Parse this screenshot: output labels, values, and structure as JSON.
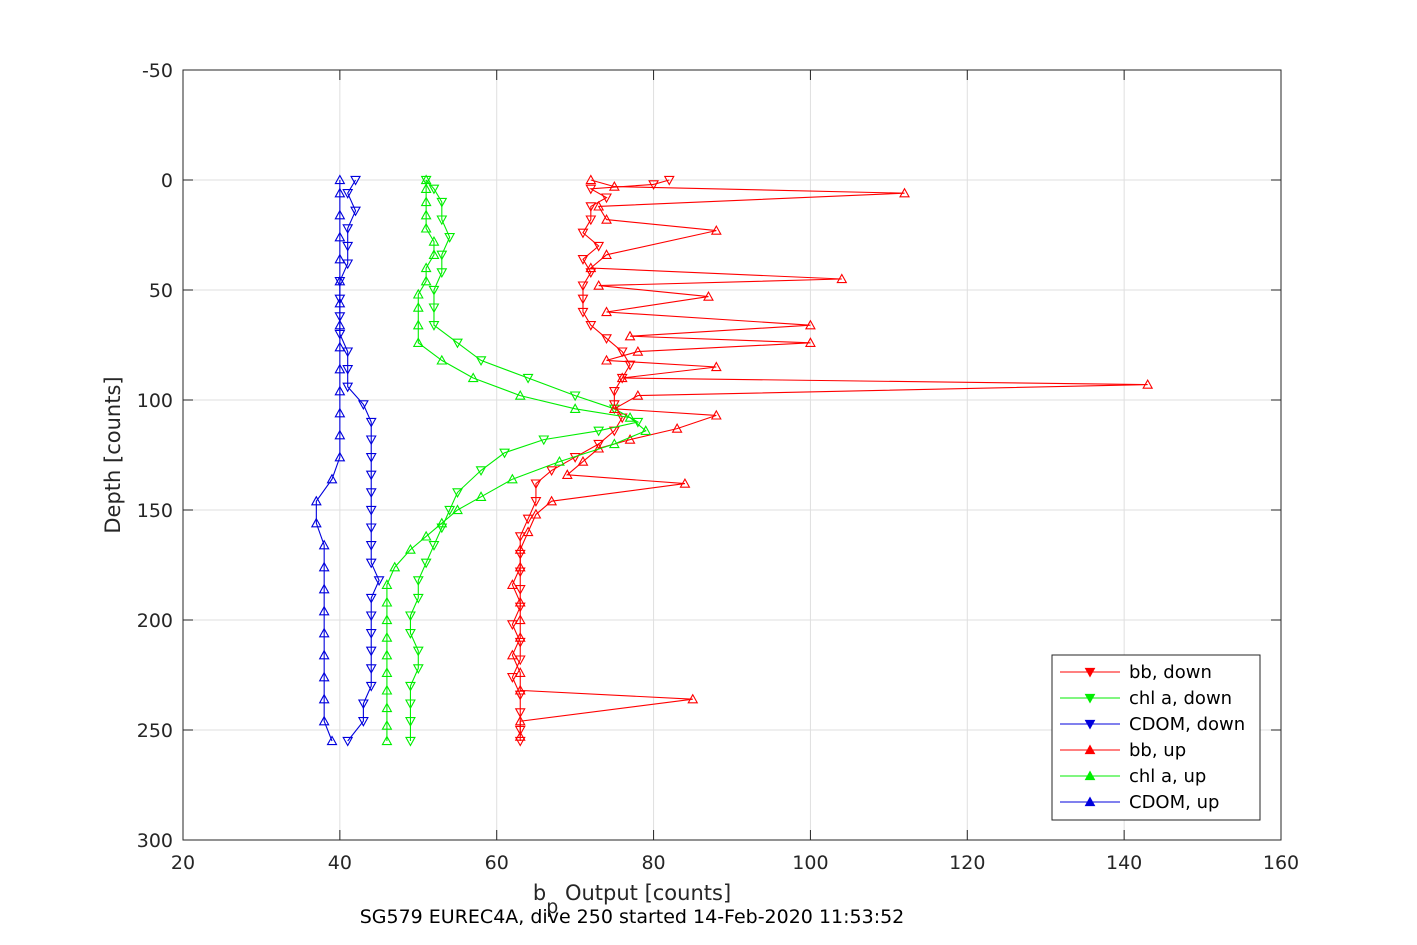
{
  "chart_data": {
    "type": "line",
    "caption": "SG579 EUREC4A, dive 250 started 14-Feb-2020 11:53:52",
    "xlabel_main": "b",
    "xlabel_sub": "p",
    "xlabel_rest": " Output [counts]",
    "ylabel": "Depth [counts]",
    "xlim": [
      20,
      160
    ],
    "ylim": [
      -50,
      300
    ],
    "y_reversed": true,
    "grid": true,
    "legend_position": "bottom-right",
    "xticks": [
      "20",
      "40",
      "60",
      "80",
      "100",
      "120",
      "140",
      "160"
    ],
    "yticks": [
      "-50",
      "0",
      "50",
      "100",
      "150",
      "200",
      "250",
      "300"
    ],
    "series": [
      {
        "name": "bb, down",
        "color": "#ff0000",
        "marker": "triangle-down",
        "points": [
          [
            82,
            0
          ],
          [
            80,
            2
          ],
          [
            72,
            4
          ],
          [
            74,
            8
          ],
          [
            72,
            12
          ],
          [
            72,
            18
          ],
          [
            71,
            24
          ],
          [
            73,
            30
          ],
          [
            71,
            36
          ],
          [
            72,
            42
          ],
          [
            71,
            48
          ],
          [
            71,
            54
          ],
          [
            71,
            60
          ],
          [
            72,
            66
          ],
          [
            74,
            72
          ],
          [
            76,
            78
          ],
          [
            77,
            84
          ],
          [
            76,
            90
          ],
          [
            75,
            96
          ],
          [
            75,
            102
          ],
          [
            76,
            108
          ],
          [
            75,
            114
          ],
          [
            73,
            120
          ],
          [
            70,
            126
          ],
          [
            67,
            132
          ],
          [
            65,
            138
          ],
          [
            65,
            146
          ],
          [
            64,
            154
          ],
          [
            63,
            162
          ],
          [
            63,
            170
          ],
          [
            63,
            178
          ],
          [
            63,
            186
          ],
          [
            63,
            194
          ],
          [
            62,
            202
          ],
          [
            63,
            210
          ],
          [
            63,
            218
          ],
          [
            62,
            226
          ],
          [
            63,
            234
          ],
          [
            63,
            242
          ],
          [
            63,
            250
          ],
          [
            63,
            255
          ]
        ]
      },
      {
        "name": "chl a, down",
        "color": "#00ee00",
        "marker": "triangle-down",
        "points": [
          [
            51,
            0
          ],
          [
            52,
            4
          ],
          [
            53,
            10
          ],
          [
            53,
            18
          ],
          [
            54,
            26
          ],
          [
            53,
            34
          ],
          [
            53,
            42
          ],
          [
            52,
            50
          ],
          [
            52,
            58
          ],
          [
            52,
            66
          ],
          [
            55,
            74
          ],
          [
            58,
            82
          ],
          [
            64,
            90
          ],
          [
            70,
            98
          ],
          [
            75,
            104
          ],
          [
            78,
            110
          ],
          [
            73,
            114
          ],
          [
            66,
            118
          ],
          [
            61,
            124
          ],
          [
            58,
            132
          ],
          [
            55,
            142
          ],
          [
            54,
            150
          ],
          [
            53,
            158
          ],
          [
            52,
            166
          ],
          [
            51,
            174
          ],
          [
            50,
            182
          ],
          [
            50,
            190
          ],
          [
            49,
            198
          ],
          [
            49,
            206
          ],
          [
            50,
            214
          ],
          [
            50,
            222
          ],
          [
            49,
            230
          ],
          [
            49,
            238
          ],
          [
            49,
            246
          ],
          [
            49,
            255
          ]
        ]
      },
      {
        "name": "CDOM, down",
        "color": "#0000dd",
        "marker": "triangle-down",
        "points": [
          [
            42,
            0
          ],
          [
            41,
            6
          ],
          [
            42,
            14
          ],
          [
            41,
            22
          ],
          [
            41,
            30
          ],
          [
            41,
            38
          ],
          [
            40,
            46
          ],
          [
            40,
            54
          ],
          [
            40,
            62
          ],
          [
            40,
            70
          ],
          [
            41,
            78
          ],
          [
            41,
            86
          ],
          [
            41,
            94
          ],
          [
            43,
            102
          ],
          [
            44,
            110
          ],
          [
            44,
            118
          ],
          [
            44,
            126
          ],
          [
            44,
            134
          ],
          [
            44,
            142
          ],
          [
            44,
            150
          ],
          [
            44,
            158
          ],
          [
            44,
            166
          ],
          [
            44,
            174
          ],
          [
            45,
            182
          ],
          [
            44,
            190
          ],
          [
            44,
            198
          ],
          [
            44,
            206
          ],
          [
            44,
            214
          ],
          [
            44,
            222
          ],
          [
            44,
            230
          ],
          [
            43,
            238
          ],
          [
            43,
            246
          ],
          [
            41,
            255
          ]
        ]
      },
      {
        "name": "bb, up",
        "color": "#ff0000",
        "marker": "triangle-up",
        "points": [
          [
            63,
            253
          ],
          [
            63,
            246
          ],
          [
            85,
            236
          ],
          [
            63,
            232
          ],
          [
            63,
            224
          ],
          [
            62,
            216
          ],
          [
            63,
            208
          ],
          [
            63,
            200
          ],
          [
            63,
            192
          ],
          [
            62,
            184
          ],
          [
            63,
            176
          ],
          [
            63,
            168
          ],
          [
            64,
            160
          ],
          [
            65,
            152
          ],
          [
            67,
            146
          ],
          [
            84,
            138
          ],
          [
            69,
            134
          ],
          [
            71,
            128
          ],
          [
            73,
            122
          ],
          [
            77,
            118
          ],
          [
            83,
            113
          ],
          [
            88,
            107
          ],
          [
            75,
            104
          ],
          [
            78,
            98
          ],
          [
            143,
            93
          ],
          [
            76,
            90
          ],
          [
            88,
            85
          ],
          [
            74,
            82
          ],
          [
            78,
            78
          ],
          [
            100,
            74
          ],
          [
            77,
            71
          ],
          [
            100,
            66
          ],
          [
            74,
            60
          ],
          [
            87,
            53
          ],
          [
            73,
            48
          ],
          [
            104,
            45
          ],
          [
            72,
            40
          ],
          [
            74,
            34
          ],
          [
            88,
            23
          ],
          [
            74,
            18
          ],
          [
            73,
            12
          ],
          [
            112,
            6
          ],
          [
            75,
            3
          ],
          [
            72,
            0
          ]
        ]
      },
      {
        "name": "chl a, up",
        "color": "#00ee00",
        "marker": "triangle-up",
        "points": [
          [
            46,
            255
          ],
          [
            46,
            248
          ],
          [
            46,
            240
          ],
          [
            46,
            232
          ],
          [
            46,
            224
          ],
          [
            46,
            216
          ],
          [
            46,
            208
          ],
          [
            46,
            200
          ],
          [
            46,
            192
          ],
          [
            46,
            184
          ],
          [
            47,
            176
          ],
          [
            49,
            168
          ],
          [
            51,
            162
          ],
          [
            53,
            156
          ],
          [
            55,
            150
          ],
          [
            58,
            144
          ],
          [
            62,
            136
          ],
          [
            68,
            128
          ],
          [
            75,
            120
          ],
          [
            79,
            114
          ],
          [
            77,
            108
          ],
          [
            70,
            104
          ],
          [
            63,
            98
          ],
          [
            57,
            90
          ],
          [
            53,
            82
          ],
          [
            50,
            74
          ],
          [
            50,
            66
          ],
          [
            50,
            58
          ],
          [
            50,
            52
          ],
          [
            51,
            46
          ],
          [
            51,
            40
          ],
          [
            52,
            34
          ],
          [
            52,
            28
          ],
          [
            51,
            22
          ],
          [
            51,
            16
          ],
          [
            51,
            10
          ],
          [
            51,
            4
          ],
          [
            51,
            0
          ]
        ]
      },
      {
        "name": "CDOM, up",
        "color": "#0000dd",
        "marker": "triangle-up",
        "points": [
          [
            39,
            255
          ],
          [
            38,
            246
          ],
          [
            38,
            236
          ],
          [
            38,
            226
          ],
          [
            38,
            216
          ],
          [
            38,
            206
          ],
          [
            38,
            196
          ],
          [
            38,
            186
          ],
          [
            38,
            176
          ],
          [
            38,
            166
          ],
          [
            37,
            156
          ],
          [
            37,
            146
          ],
          [
            39,
            136
          ],
          [
            40,
            126
          ],
          [
            40,
            116
          ],
          [
            40,
            106
          ],
          [
            40,
            96
          ],
          [
            40,
            86
          ],
          [
            40,
            76
          ],
          [
            40,
            66
          ],
          [
            40,
            56
          ],
          [
            40,
            46
          ],
          [
            40,
            36
          ],
          [
            40,
            26
          ],
          [
            40,
            16
          ],
          [
            40,
            6
          ],
          [
            40,
            0
          ]
        ]
      }
    ]
  }
}
